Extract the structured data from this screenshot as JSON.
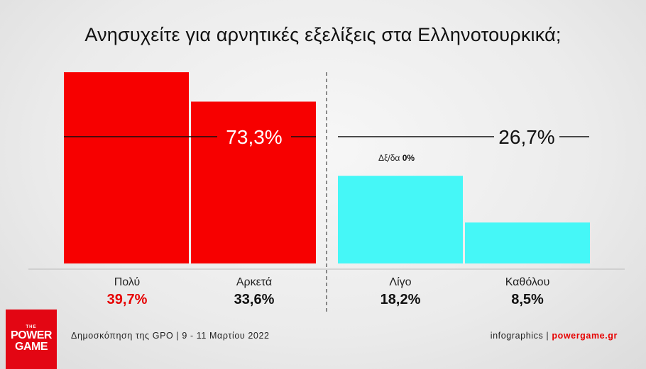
{
  "title": "Ανησυχείτε για αρνητικές εξελίξεις στα Ελληνοτουρκικά;",
  "chart_data": {
    "type": "bar",
    "categories": [
      "Πολύ",
      "Αρκετά",
      "Λίγο",
      "Καθόλου"
    ],
    "values": [
      39.7,
      33.6,
      18.2,
      8.5
    ],
    "value_labels": [
      "39,7%",
      "33,6%",
      "18,2%",
      "8,5%"
    ],
    "groups": [
      {
        "label": "73,3%",
        "value": 73.3,
        "categories": [
          "Πολύ",
          "Αρκετά"
        ],
        "color": "#f70000"
      },
      {
        "label": "26,7%",
        "value": 26.7,
        "categories": [
          "Λίγο",
          "Καθόλου"
        ],
        "color": "#45f7f7"
      }
    ],
    "annotation": {
      "text": "Δξ/δα",
      "value": "0%"
    },
    "ylim": [
      0,
      42
    ]
  },
  "footer": {
    "source": "Δημοσκόπηση της GPO | 9 - 11 Μαρτίου 2022",
    "credit": "infographics |",
    "site": "powergame.gr"
  },
  "logo": {
    "line1": "THE",
    "line2": "POWER",
    "line3": "GAME"
  },
  "colors": {
    "red": "#f70000",
    "cyan": "#45f7f7",
    "accent": "#e60000"
  }
}
